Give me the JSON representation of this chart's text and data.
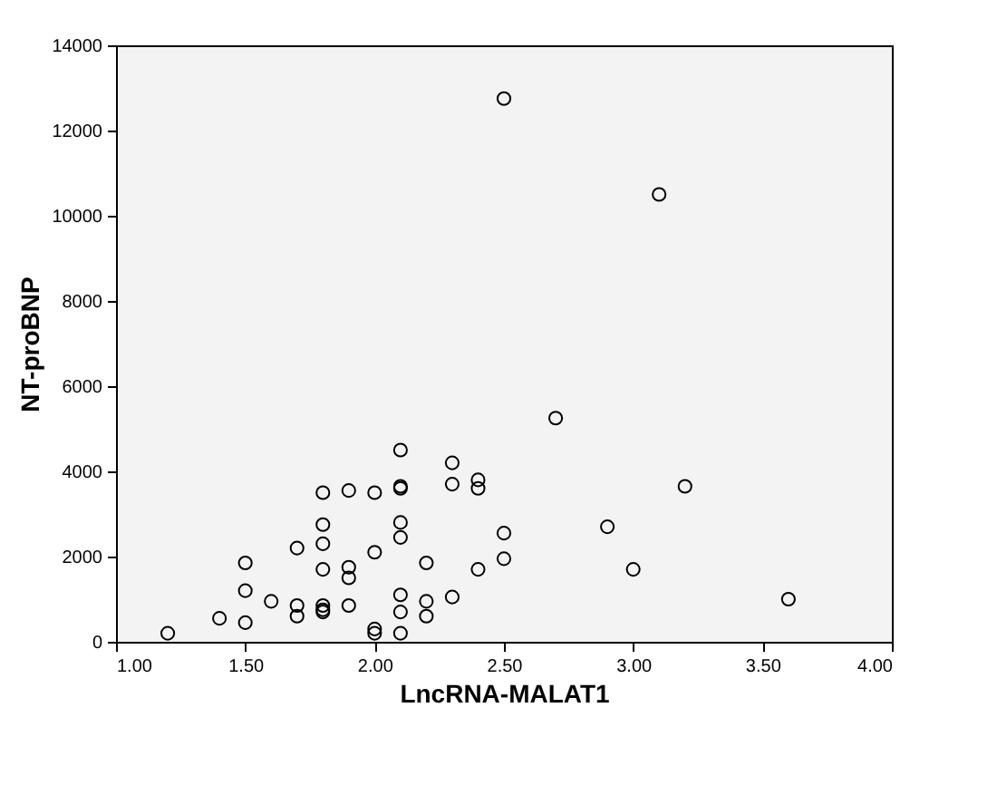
{
  "chart_data": {
    "type": "scatter",
    "xlabel": "LncRNA-MALAT1",
    "ylabel": "NT-proBNP",
    "x": [
      1.2,
      1.4,
      1.5,
      1.5,
      1.5,
      1.6,
      1.7,
      1.7,
      1.7,
      1.8,
      1.8,
      1.8,
      1.8,
      1.8,
      1.8,
      1.8,
      1.9,
      1.9,
      1.9,
      1.9,
      2.0,
      2.0,
      2.0,
      2.0,
      2.1,
      2.1,
      2.1,
      2.1,
      2.1,
      2.1,
      2.1,
      2.1,
      2.2,
      2.2,
      2.2,
      2.3,
      2.3,
      2.3,
      2.4,
      2.4,
      2.4,
      2.5,
      2.5,
      2.5,
      2.7,
      2.9,
      3.0,
      3.1,
      3.2,
      3.6
    ],
    "values": [
      200,
      550,
      1850,
      1200,
      450,
      950,
      2200,
      850,
      600,
      3500,
      2750,
      2300,
      1700,
      850,
      750,
      700,
      3550,
      1750,
      1500,
      850,
      3500,
      2100,
      300,
      200,
      4500,
      3650,
      3600,
      2800,
      2450,
      1100,
      700,
      200,
      1850,
      950,
      600,
      4200,
      3700,
      1050,
      3800,
      3600,
      1700,
      12750,
      2550,
      1950,
      5250,
      2700,
      1700,
      10500,
      3650,
      1000
    ],
    "color": "#000000",
    "marker": "circle",
    "xlim": [
      1,
      4
    ],
    "xticks": [
      {
        "value": 1,
        "label": "1.00"
      },
      {
        "value": 1.5,
        "label": "1.50"
      },
      {
        "value": 2,
        "label": "2.00"
      },
      {
        "value": 2.5,
        "label": "2.50"
      },
      {
        "value": 3,
        "label": "3.00"
      },
      {
        "value": 3.5,
        "label": "3.50"
      },
      {
        "value": 4,
        "label": "4.00"
      }
    ],
    "ylim": [
      0,
      14000
    ],
    "yticks": [
      0,
      2000,
      4000,
      6000,
      8000,
      10000,
      12000,
      14000
    ]
  }
}
